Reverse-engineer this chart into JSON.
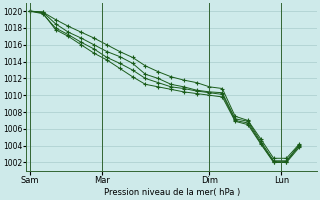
{
  "background_color": "#ceeaea",
  "grid_color": "#aacccc",
  "line_color": "#1a5c1a",
  "marker_color": "#1a5c1a",
  "xlabel": "Pression niveau de la mer( hPa )",
  "ylim": [
    1001,
    1021
  ],
  "yticks": [
    1002,
    1004,
    1006,
    1008,
    1010,
    1012,
    1014,
    1016,
    1018,
    1020
  ],
  "x_tick_labels": [
    "Sam",
    "Mar",
    "Dim",
    "Lun"
  ],
  "series": [
    [
      1020.0,
      1019.9,
      1018.5,
      1017.5,
      1016.8,
      1016.0,
      1015.2,
      1014.6,
      1013.8,
      1012.5,
      1012.0,
      1011.3,
      1011.0,
      1010.6,
      1010.4,
      1010.3,
      1007.2,
      1006.9,
      1004.5,
      1002.2,
      1002.2,
      1004.1
    ],
    [
      1020.0,
      1019.8,
      1017.8,
      1017.0,
      1016.0,
      1015.0,
      1014.2,
      1013.2,
      1012.2,
      1011.3,
      1011.0,
      1010.7,
      1010.4,
      1010.2,
      1010.0,
      1009.8,
      1006.9,
      1006.5,
      1004.2,
      1002.0,
      1002.0,
      1003.8
    ],
    [
      1020.0,
      1019.7,
      1018.0,
      1017.2,
      1016.3,
      1015.5,
      1014.5,
      1013.8,
      1013.0,
      1012.0,
      1011.5,
      1011.0,
      1010.8,
      1010.5,
      1010.3,
      1010.1,
      1007.0,
      1006.7,
      1004.3,
      1002.1,
      1002.1,
      1004.0
    ],
    [
      1020.0,
      1019.9,
      1019.0,
      1018.2,
      1017.5,
      1016.8,
      1016.0,
      1015.2,
      1014.5,
      1013.5,
      1012.8,
      1012.2,
      1011.8,
      1011.5,
      1011.0,
      1010.8,
      1007.5,
      1007.0,
      1004.8,
      1002.5,
      1002.5,
      1004.2
    ]
  ],
  "figsize": [
    3.2,
    2.0
  ],
  "dpi": 100
}
